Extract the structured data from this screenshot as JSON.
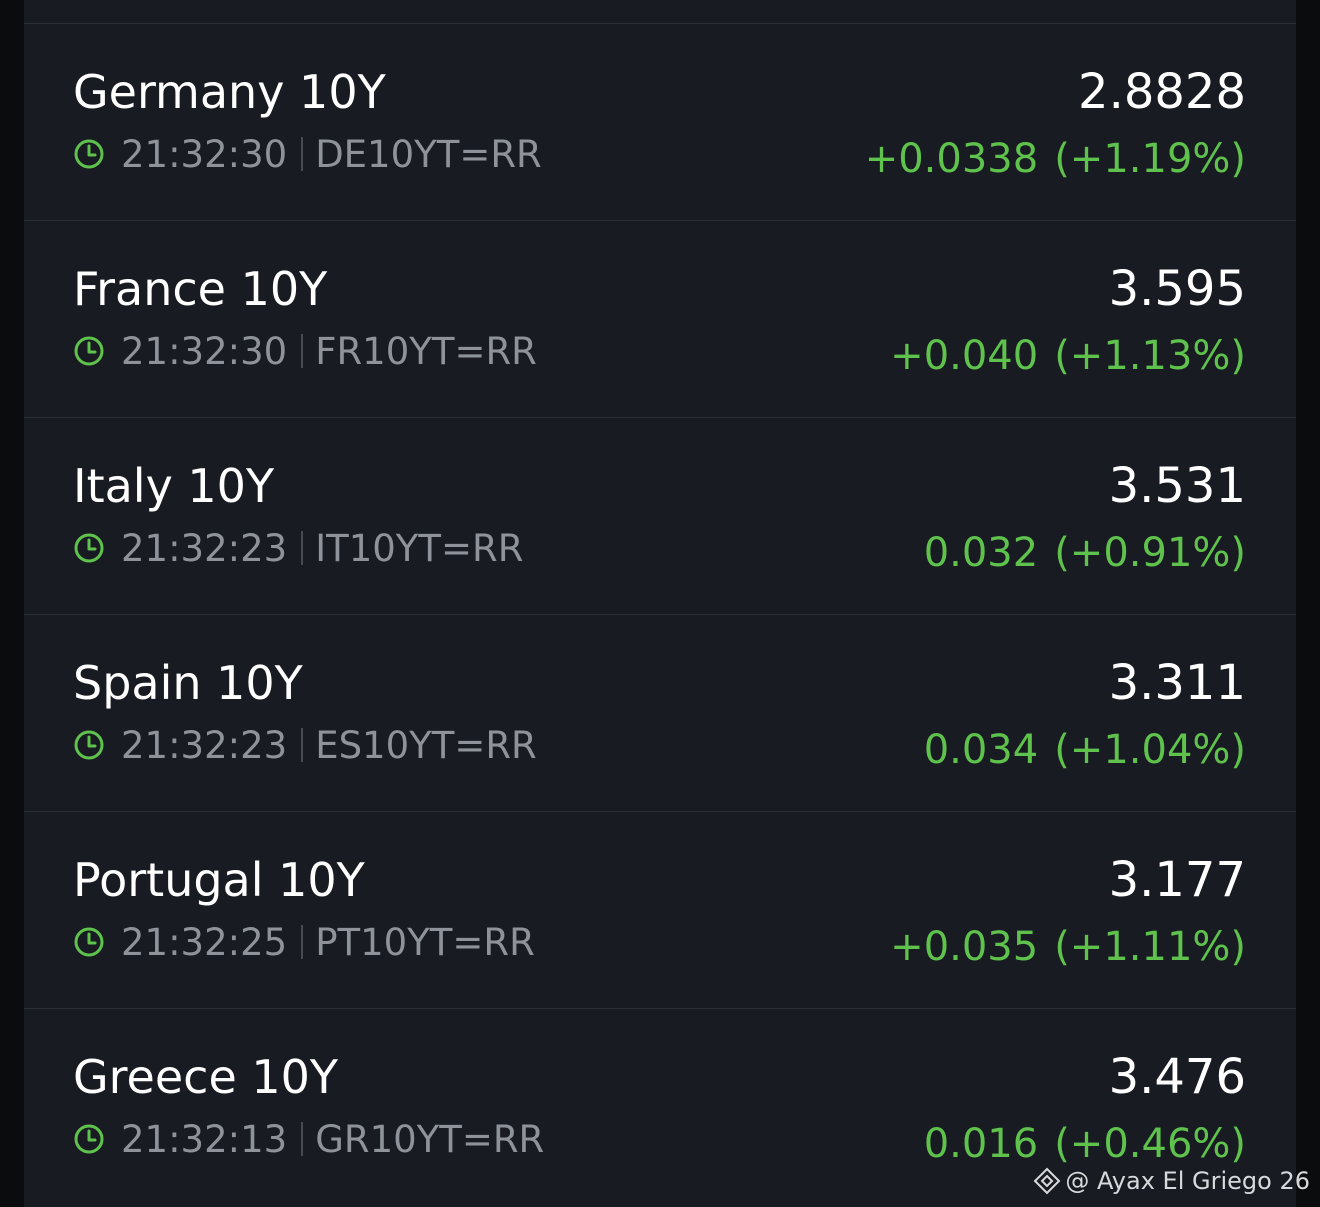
{
  "colors": {
    "background": "#181b21",
    "divider": "#2b2f36",
    "positive": "#5fc24d",
    "primary_text": "#ffffff",
    "secondary_text": "#8e939b"
  },
  "quotes": [
    {
      "name": "Germany 10Y",
      "time": "21:32:30",
      "ric": "DE10YT=RR",
      "price": "2.8828",
      "change": "+0.0338",
      "change_pct": "(+1.19%)"
    },
    {
      "name": "France 10Y",
      "time": "21:32:30",
      "ric": "FR10YT=RR",
      "price": "3.595",
      "change": "+0.040",
      "change_pct": "(+1.13%)"
    },
    {
      "name": "Italy 10Y",
      "time": "21:32:23",
      "ric": "IT10YT=RR",
      "price": "3.531",
      "change": "0.032",
      "change_pct": "(+0.91%)"
    },
    {
      "name": "Spain 10Y",
      "time": "21:32:23",
      "ric": "ES10YT=RR",
      "price": "3.311",
      "change": "0.034",
      "change_pct": "(+1.04%)"
    },
    {
      "name": "Portugal 10Y",
      "time": "21:32:25",
      "ric": "PT10YT=RR",
      "price": "3.177",
      "change": "+0.035",
      "change_pct": "(+1.11%)"
    },
    {
      "name": "Greece 10Y",
      "time": "21:32:13",
      "ric": "GR10YT=RR",
      "price": "3.476",
      "change": "0.016",
      "change_pct": "(+0.46%)"
    }
  ],
  "icons": {
    "timestamp": "clock-icon",
    "watermark": "binance-diamond-icon"
  },
  "watermark": {
    "text": "@ Ayax El Griego 26"
  }
}
